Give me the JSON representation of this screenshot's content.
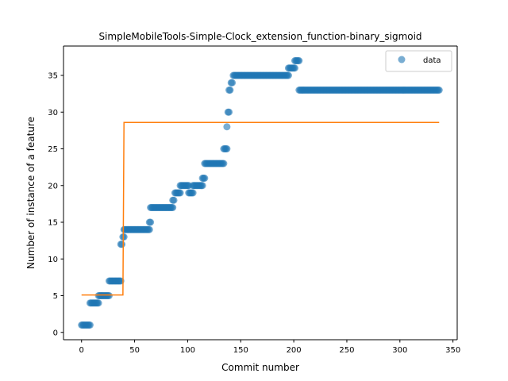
{
  "chart_data": {
    "type": "scatter",
    "title": "SimpleMobileTools-Simple-Clock_extension_function-binary_sigmoid",
    "xlabel": "Commit number",
    "ylabel": "Number of instance of a feature",
    "xlim": [
      -17,
      354
    ],
    "ylim": [
      -1,
      39
    ],
    "xticks": [
      0,
      50,
      100,
      150,
      200,
      250,
      300,
      350
    ],
    "yticks": [
      0,
      5,
      10,
      15,
      20,
      25,
      30,
      35
    ],
    "grid": false,
    "legend_position": "top-right",
    "colors": {
      "scatter": "#1f77b4",
      "fit": "#ff7f0e"
    },
    "scatter_series": {
      "name": "data",
      "segments": [
        {
          "x_start": 0,
          "x_end": 8,
          "y": 1
        },
        {
          "x_start": 8,
          "x_end": 16,
          "y": 4
        },
        {
          "x_start": 16,
          "x_end": 26,
          "y": 5
        },
        {
          "x_start": 26,
          "x_end": 37,
          "y": 7
        },
        {
          "x_start": 37,
          "x_end": 38,
          "y": 12
        },
        {
          "x_start": 39,
          "x_end": 40,
          "y": 13
        },
        {
          "x_start": 40,
          "x_end": 64,
          "y": 14
        },
        {
          "x_start": 64,
          "x_end": 65,
          "y": 15
        },
        {
          "x_start": 65,
          "x_end": 86,
          "y": 17
        },
        {
          "x_start": 86,
          "x_end": 87,
          "y": 18
        },
        {
          "x_start": 88,
          "x_end": 93,
          "y": 19
        },
        {
          "x_start": 93,
          "x_end": 101,
          "y": 20
        },
        {
          "x_start": 101,
          "x_end": 105,
          "y": 19
        },
        {
          "x_start": 105,
          "x_end": 114,
          "y": 20
        },
        {
          "x_start": 114,
          "x_end": 116,
          "y": 21
        },
        {
          "x_start": 116,
          "x_end": 134,
          "y": 23
        },
        {
          "x_start": 134,
          "x_end": 137,
          "y": 25
        },
        {
          "x_start": 137,
          "x_end": 137,
          "y": 28
        },
        {
          "x_start": 138,
          "x_end": 139,
          "y": 30
        },
        {
          "x_start": 139,
          "x_end": 140,
          "y": 33
        },
        {
          "x_start": 141,
          "x_end": 142,
          "y": 34
        },
        {
          "x_start": 143,
          "x_end": 195,
          "y": 35
        },
        {
          "x_start": 195,
          "x_end": 201,
          "y": 36
        },
        {
          "x_start": 201,
          "x_end": 205,
          "y": 37
        },
        {
          "x_start": 205,
          "x_end": 337,
          "y": 33
        }
      ]
    },
    "fit_line": {
      "points": [
        [
          0,
          5.1
        ],
        [
          39,
          5.1
        ],
        [
          40,
          28.6
        ],
        [
          337,
          28.6
        ]
      ]
    }
  }
}
